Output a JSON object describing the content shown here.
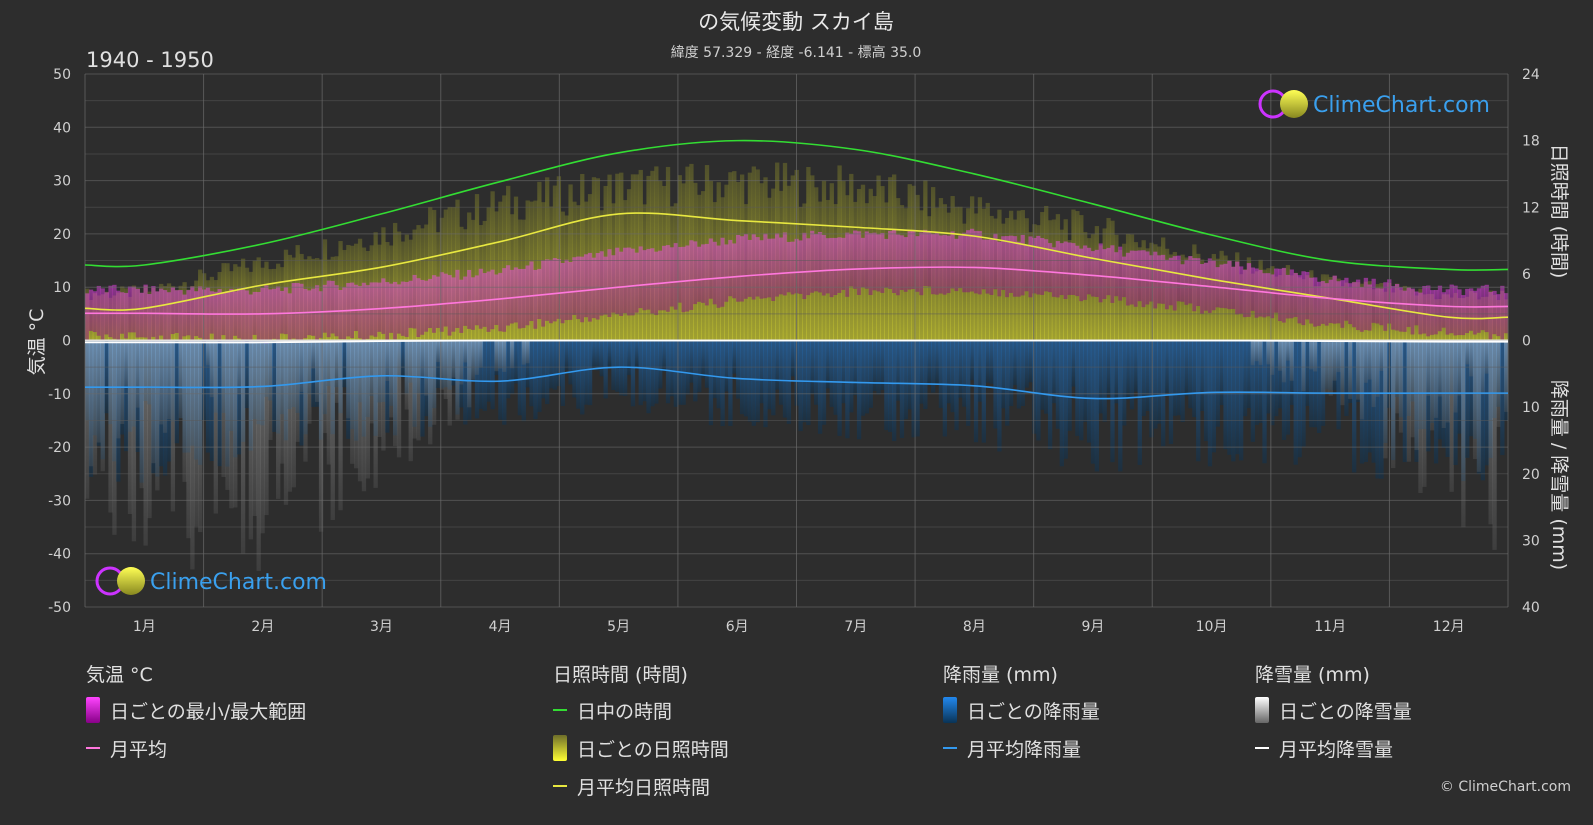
{
  "chart_data": {
    "type": "line",
    "title": "の気候変動 スカイ島",
    "subtitle": "緯度 57.329 - 経度 -6.141 - 標高 35.0",
    "period": "1940 - 1950",
    "watermark": "ClimeChart.com",
    "copyright": "© ClimeChart.com",
    "categories": [
      "1月",
      "2月",
      "3月",
      "4月",
      "5月",
      "6月",
      "7月",
      "8月",
      "9月",
      "10月",
      "11月",
      "12月"
    ],
    "axes": {
      "left": {
        "label": "気温 °C",
        "min": -50,
        "max": 50,
        "ticks": [
          50,
          40,
          30,
          20,
          10,
          0,
          -10,
          -20,
          -30,
          -40,
          -50
        ]
      },
      "right_top": {
        "label": "日照時間 (時間)",
        "min": 0,
        "max": 24,
        "ticks": [
          24,
          18,
          12,
          6,
          0
        ]
      },
      "right_bottom": {
        "label": "降雨量 / 降雪量 (mm)",
        "min": 0,
        "max": 40,
        "ticks": [
          0,
          10,
          20,
          30,
          40
        ]
      }
    },
    "grid": true,
    "series": [
      {
        "name": "日中の時間",
        "axis": "sunshine_hours",
        "color": "#33dd33",
        "values": [
          6.8,
          8.7,
          11.4,
          14.3,
          16.9,
          18.0,
          17.2,
          15.0,
          12.3,
          9.5,
          7.2,
          6.4
        ]
      },
      {
        "name": "月平均日照時間",
        "axis": "sunshine_hours",
        "color": "#e8e840",
        "values": [
          2.9,
          5.0,
          6.6,
          8.9,
          11.4,
          10.8,
          10.2,
          9.4,
          7.4,
          5.5,
          3.8,
          2.1
        ]
      },
      {
        "name": "月平均",
        "axis": "temperature_c",
        "color": "#ff77dd",
        "values": [
          5.1,
          5.0,
          6.0,
          7.8,
          10.0,
          12.0,
          13.4,
          13.7,
          12.2,
          10.1,
          7.9,
          6.4
        ]
      },
      {
        "name": "月平均降雨量",
        "axis": "precipitation_mm",
        "color": "#3399ee",
        "values": [
          7.0,
          6.9,
          5.3,
          6.1,
          4.0,
          5.7,
          6.3,
          6.8,
          8.7,
          7.8,
          7.9,
          7.9
        ]
      },
      {
        "name": "月平均降雪量",
        "axis": "precipitation_mm",
        "color": "#ffffff",
        "values": [
          0.3,
          0.3,
          0.1,
          0.0,
          0.0,
          0.0,
          0.0,
          0.0,
          0.0,
          0.0,
          0.1,
          0.2
        ]
      }
    ],
    "daily_ranges": {
      "temperature_min": [
        1.5,
        1.2,
        2.0,
        3.5,
        5.8,
        8.5,
        10.3,
        10.5,
        9.0,
        6.8,
        4.0,
        2.5
      ],
      "temperature_max": [
        8.5,
        8.4,
        10.0,
        12.0,
        15.5,
        18.0,
        19.0,
        19.0,
        16.5,
        13.5,
        10.5,
        8.5
      ],
      "sunshine_max": [
        5.0,
        8.0,
        11.0,
        14.0,
        15.8,
        16.3,
        15.8,
        13.5,
        11.5,
        8.5,
        6.0,
        4.5
      ],
      "rain_max": [
        22,
        18,
        15,
        14,
        10,
        14,
        15,
        16,
        20,
        19,
        20,
        22
      ],
      "snow_max": [
        35,
        35,
        25,
        5,
        0,
        0,
        0,
        0,
        0,
        1,
        10,
        30
      ]
    }
  },
  "legend": {
    "temperature": {
      "header": "気温 °C",
      "items": [
        "日ごとの最小/最大範囲",
        "月平均"
      ],
      "colors": [
        "#dd33dd",
        "#ff77dd"
      ]
    },
    "sunshine": {
      "header": "日照時間 (時間)",
      "items": [
        "日中の時間",
        "日ごとの日照時間",
        "月平均日照時間"
      ],
      "colors": [
        "#33dd33",
        "#c8c83a",
        "#e8e840"
      ]
    },
    "rain": {
      "header": "降雨量 (mm)",
      "items": [
        "日ごとの降雨量",
        "月平均降雨量"
      ],
      "colors": [
        "#1f77c4",
        "#3399ee"
      ]
    },
    "snow": {
      "header": "降雪量 (mm)",
      "items": [
        "日ごとの降雪量",
        "月平均降雪量"
      ],
      "colors": [
        "#dddddd",
        "#ffffff"
      ]
    }
  }
}
